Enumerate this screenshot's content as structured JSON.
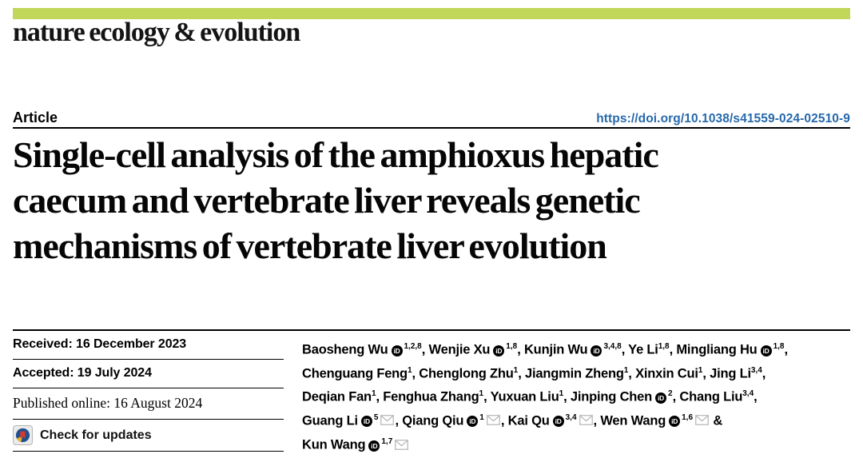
{
  "masthead": {
    "journal": "nature ecology & evolution",
    "accent_color": "#c1d75a"
  },
  "header": {
    "article_label": "Article",
    "doi": "https://doi.org/10.1038/s41559-024-02510-9",
    "doi_color": "#2769ac"
  },
  "title": {
    "lines": [
      "Single-cell analysis of the amphioxus hepatic",
      "caecum and vertebrate liver reveals genetic",
      "mechanisms of vertebrate liver evolution"
    ]
  },
  "dates": [
    {
      "label": "Received",
      "value": "16 December 2023",
      "style": "sans"
    },
    {
      "label": "Accepted",
      "value": "19 July 2024",
      "style": "sans"
    },
    {
      "label": "Published online",
      "value": "16 August 2024",
      "style": "serif"
    }
  ],
  "check_for_updates": {
    "label": "Check for updates",
    "icon": "crossmark-icon",
    "icon_colors": {
      "box": "#ebebeb",
      "border": "#b5b5b5",
      "blue": "#20508e",
      "red": "#d8382e",
      "yellow": "#f3b71c"
    }
  },
  "authors": {
    "orcid_icon_text": "iD",
    "lines": [
      [
        {
          "name": "Baosheng Wu",
          "orcid": true,
          "sup": "1,2,8",
          "env": false,
          "sep": ", "
        },
        {
          "name": "Wenjie Xu",
          "orcid": true,
          "sup": "1,8",
          "env": false,
          "sep": ", "
        },
        {
          "name": "Kunjin Wu",
          "orcid": true,
          "sup": "3,4,8",
          "env": false,
          "sep": ", "
        },
        {
          "name": "Ye Li",
          "orcid": false,
          "sup": "1,8",
          "env": false,
          "sep": ", "
        },
        {
          "name": "Mingliang Hu",
          "orcid": true,
          "sup": "1,8",
          "env": false,
          "sep": ","
        }
      ],
      [
        {
          "name": "Chenguang Feng",
          "orcid": false,
          "sup": "1",
          "env": false,
          "sep": ", "
        },
        {
          "name": "Chenglong Zhu",
          "orcid": false,
          "sup": "1",
          "env": false,
          "sep": ", "
        },
        {
          "name": "Jiangmin Zheng",
          "orcid": false,
          "sup": "1",
          "env": false,
          "sep": ", "
        },
        {
          "name": "Xinxin Cui",
          "orcid": false,
          "sup": "1",
          "env": false,
          "sep": ", "
        },
        {
          "name": "Jing Li",
          "orcid": false,
          "sup": "3,4",
          "env": false,
          "sep": ","
        }
      ],
      [
        {
          "name": "Deqian Fan",
          "orcid": false,
          "sup": "1",
          "env": false,
          "sep": ", "
        },
        {
          "name": "Fenghua Zhang",
          "orcid": false,
          "sup": "1",
          "env": false,
          "sep": ", "
        },
        {
          "name": "Yuxuan Liu",
          "orcid": false,
          "sup": "1",
          "env": false,
          "sep": ", "
        },
        {
          "name": "Jinping Chen",
          "orcid": true,
          "sup": "2",
          "env": false,
          "sep": ", "
        },
        {
          "name": "Chang Liu",
          "orcid": false,
          "sup": "3,4",
          "env": false,
          "sep": ","
        }
      ],
      [
        {
          "name": "Guang Li",
          "orcid": true,
          "sup": "5",
          "env": true,
          "sep": ", "
        },
        {
          "name": "Qiang Qiu",
          "orcid": true,
          "sup": "1",
          "env": true,
          "sep": ", "
        },
        {
          "name": "Kai Qu",
          "orcid": true,
          "sup": "3,4",
          "env": true,
          "sep": ", "
        },
        {
          "name": "Wen Wang",
          "orcid": true,
          "sup": "1,6",
          "env": true,
          "sep": " &"
        }
      ],
      [
        {
          "name": "Kun Wang",
          "orcid": true,
          "sup": "1,7",
          "env": true,
          "sep": ""
        }
      ]
    ]
  }
}
